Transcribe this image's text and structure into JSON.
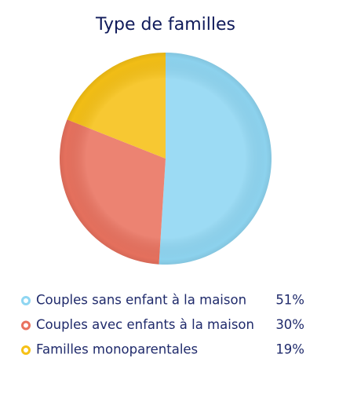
{
  "chart_data": {
    "type": "pie",
    "title": "Type de familles",
    "categories": [
      "Couples sans enfant à la maison",
      "Couples avec enfants à la maison",
      "Familles monoparentales"
    ],
    "values": [
      51,
      30,
      19
    ],
    "value_labels": [
      "51%",
      "30%",
      "19%"
    ],
    "colors": [
      "#8fd6f2",
      "#e9725f",
      "#f6c116"
    ]
  }
}
